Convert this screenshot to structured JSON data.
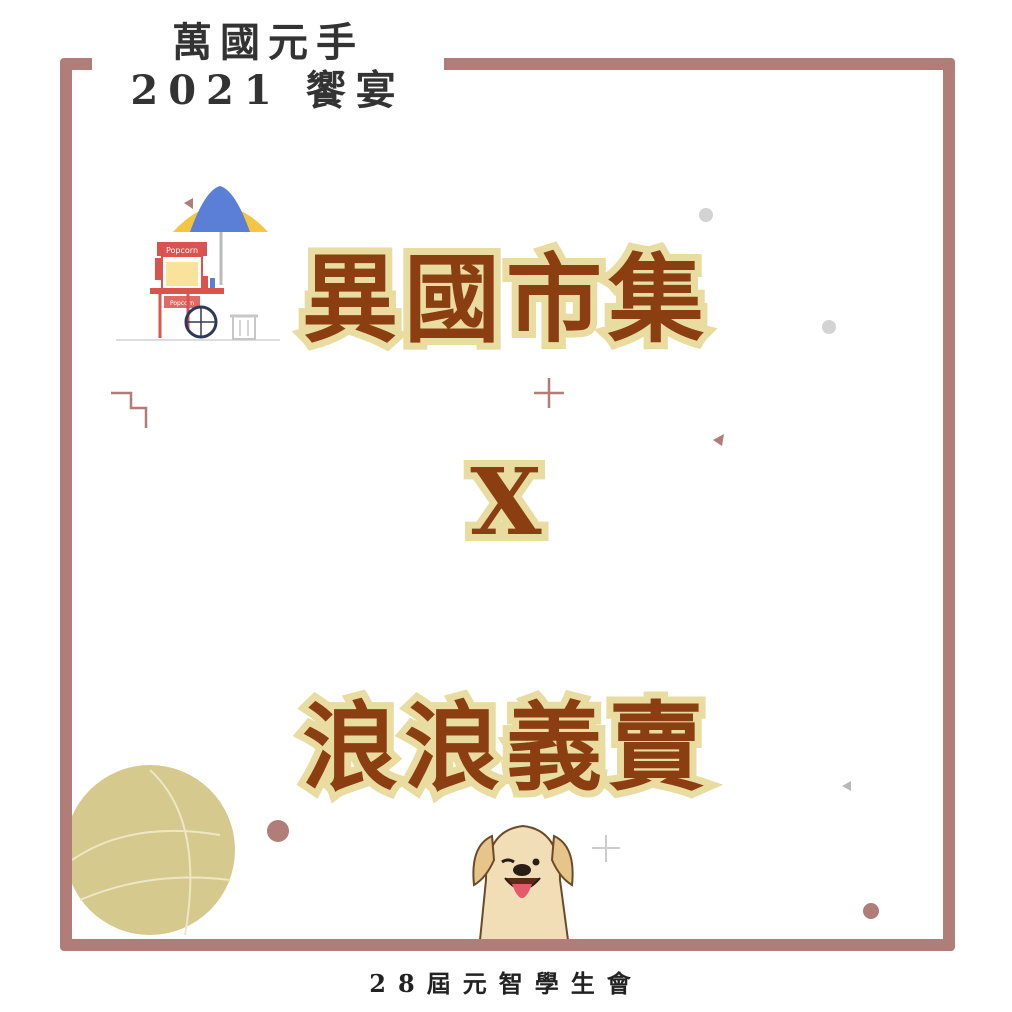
{
  "header": {
    "line1": "萬國元手",
    "line2": "2021 饗宴"
  },
  "headline": {
    "top": "異國市集",
    "middle": "X",
    "bottom": "浪浪義賣"
  },
  "footer": {
    "text": "28屆元智學生會"
  },
  "illustrations": {
    "cart_sign_top": "Popcorn",
    "cart_sign_bottom": "Popcorn"
  },
  "colors": {
    "frame": "#b07d78",
    "headline_fill": "#8a3e12",
    "headline_outline": "#e9dca0",
    "circle": "#d6c98e",
    "accent_dot": "#b07d78"
  }
}
